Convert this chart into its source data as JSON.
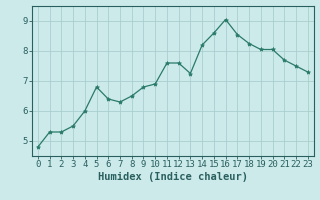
{
  "x": [
    0,
    1,
    2,
    3,
    4,
    5,
    6,
    7,
    8,
    9,
    10,
    11,
    12,
    13,
    14,
    15,
    16,
    17,
    18,
    19,
    20,
    21,
    22,
    23
  ],
  "y": [
    4.8,
    5.3,
    5.3,
    5.5,
    6.0,
    6.8,
    6.4,
    6.3,
    6.5,
    6.8,
    6.9,
    7.6,
    7.6,
    7.25,
    8.2,
    8.6,
    9.05,
    8.55,
    8.25,
    8.05,
    8.05,
    7.7,
    7.5,
    7.3
  ],
  "line_color": "#2a7a6a",
  "marker": "*",
  "marker_size": 3,
  "bg_color": "#cceaea",
  "grid_color": "#aacece",
  "axis_color": "#2a5f5f",
  "xlabel": "Humidex (Indice chaleur)",
  "ylim": [
    4.5,
    9.5
  ],
  "xlim": [
    -0.5,
    23.5
  ],
  "yticks": [
    5,
    6,
    7,
    8,
    9
  ],
  "xticks": [
    0,
    1,
    2,
    3,
    4,
    5,
    6,
    7,
    8,
    9,
    10,
    11,
    12,
    13,
    14,
    15,
    16,
    17,
    18,
    19,
    20,
    21,
    22,
    23
  ],
  "xlabel_fontsize": 7.5,
  "tick_fontsize": 6.5
}
